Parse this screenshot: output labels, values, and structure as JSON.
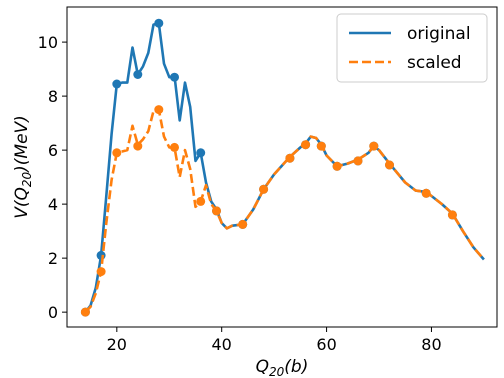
{
  "chart_data": {
    "type": "line",
    "title": "",
    "xlabel": {
      "main": "Q",
      "sub": "20",
      "rest": "(b)"
    },
    "ylabel": {
      "main": "V(Q",
      "sub": "20",
      "rest": ")(MeV)"
    },
    "xlim": [
      10.5,
      92.5
    ],
    "ylim": [
      -0.55,
      11.3
    ],
    "xticks": [
      20,
      40,
      60,
      80
    ],
    "yticks": [
      0,
      2,
      4,
      6,
      8,
      10
    ],
    "grid": false,
    "legend_position": "top-right",
    "series": [
      {
        "name": "original",
        "color": "#1f77b4",
        "style": "solid",
        "line": [
          [
            14,
            0
          ],
          [
            15,
            0.25
          ],
          [
            16,
            0.9
          ],
          [
            17,
            2.1
          ],
          [
            18,
            4.3
          ],
          [
            19,
            6.6
          ],
          [
            20,
            8.45
          ],
          [
            21,
            8.5
          ],
          [
            22,
            8.5
          ],
          [
            23,
            9.8
          ],
          [
            24,
            8.8
          ],
          [
            25,
            9.1
          ],
          [
            26,
            9.6
          ],
          [
            27,
            10.65
          ],
          [
            28,
            10.7
          ],
          [
            29,
            9.2
          ],
          [
            30,
            8.7
          ],
          [
            31,
            8.75
          ],
          [
            32,
            7.1
          ],
          [
            33,
            8.5
          ],
          [
            34,
            7.6
          ],
          [
            35,
            5.6
          ],
          [
            36,
            5.9
          ],
          [
            37,
            4.8
          ],
          [
            38,
            4.1
          ],
          [
            39,
            3.8
          ],
          [
            40,
            3.3
          ],
          [
            41,
            3.1
          ],
          [
            42,
            3.2
          ],
          [
            44,
            3.25
          ],
          [
            46,
            3.8
          ],
          [
            48,
            4.55
          ],
          [
            50,
            5.1
          ],
          [
            53,
            5.75
          ],
          [
            55,
            6.1
          ],
          [
            56,
            6.25
          ],
          [
            57,
            6.5
          ],
          [
            58,
            6.45
          ],
          [
            59,
            6.2
          ],
          [
            60,
            5.8
          ],
          [
            62,
            5.4
          ],
          [
            64,
            5.5
          ],
          [
            66,
            5.65
          ],
          [
            68,
            5.9
          ],
          [
            69,
            6.15
          ],
          [
            70,
            6.0
          ],
          [
            72,
            5.5
          ],
          [
            75,
            4.8
          ],
          [
            77,
            4.5
          ],
          [
            79,
            4.45
          ],
          [
            80,
            4.3
          ],
          [
            82,
            4.0
          ],
          [
            84,
            3.65
          ],
          [
            86,
            3.0
          ],
          [
            88,
            2.4
          ],
          [
            90,
            1.95
          ]
        ],
        "markers": [
          [
            14,
            0
          ],
          [
            17,
            2.1
          ],
          [
            20,
            8.45
          ],
          [
            24,
            8.8
          ],
          [
            28,
            10.7
          ],
          [
            31,
            8.7
          ],
          [
            36,
            5.9
          ],
          [
            39,
            3.75
          ],
          [
            44,
            3.25
          ],
          [
            48,
            4.55
          ],
          [
            53,
            5.7
          ],
          [
            56,
            6.2
          ],
          [
            59,
            6.15
          ],
          [
            62,
            5.4
          ],
          [
            66,
            5.6
          ],
          [
            69,
            6.15
          ],
          [
            72,
            5.45
          ],
          [
            79,
            4.4
          ],
          [
            84,
            3.6
          ]
        ]
      },
      {
        "name": "scaled",
        "color": "#ff7f0e",
        "style": "dashed",
        "line": [
          [
            14,
            0
          ],
          [
            15,
            0.2
          ],
          [
            16,
            0.7
          ],
          [
            17,
            1.5
          ],
          [
            18,
            3.3
          ],
          [
            19,
            4.9
          ],
          [
            20,
            5.9
          ],
          [
            21,
            5.95
          ],
          [
            22,
            6.0
          ],
          [
            23,
            6.9
          ],
          [
            24,
            6.2
          ],
          [
            25,
            6.4
          ],
          [
            26,
            6.7
          ],
          [
            27,
            7.45
          ],
          [
            28,
            7.5
          ],
          [
            29,
            6.5
          ],
          [
            30,
            6.1
          ],
          [
            31,
            6.1
          ],
          [
            32,
            5.0
          ],
          [
            33,
            6.0
          ],
          [
            34,
            5.3
          ],
          [
            35,
            3.9
          ],
          [
            36,
            4.1
          ],
          [
            37,
            4.7
          ],
          [
            38,
            4.0
          ],
          [
            39,
            3.75
          ],
          [
            40,
            3.3
          ],
          [
            41,
            3.1
          ],
          [
            42,
            3.2
          ],
          [
            44,
            3.25
          ],
          [
            46,
            3.8
          ],
          [
            48,
            4.55
          ],
          [
            50,
            5.1
          ],
          [
            53,
            5.75
          ],
          [
            55,
            6.1
          ],
          [
            56,
            6.25
          ],
          [
            57,
            6.5
          ],
          [
            58,
            6.45
          ],
          [
            59,
            6.2
          ],
          [
            60,
            5.8
          ],
          [
            62,
            5.4
          ],
          [
            64,
            5.5
          ],
          [
            66,
            5.65
          ],
          [
            68,
            5.9
          ],
          [
            69,
            6.15
          ],
          [
            70,
            6.0
          ],
          [
            72,
            5.5
          ],
          [
            75,
            4.8
          ],
          [
            77,
            4.5
          ],
          [
            79,
            4.45
          ],
          [
            80,
            4.3
          ],
          [
            82,
            4.0
          ],
          [
            84,
            3.65
          ],
          [
            86,
            3.0
          ],
          [
            88,
            2.4
          ],
          [
            90,
            1.95
          ]
        ],
        "markers": [
          [
            14,
            0
          ],
          [
            17,
            1.5
          ],
          [
            20,
            5.9
          ],
          [
            24,
            6.15
          ],
          [
            28,
            7.5
          ],
          [
            31,
            6.1
          ],
          [
            36,
            4.1
          ],
          [
            39,
            3.75
          ],
          [
            44,
            3.25
          ],
          [
            48,
            4.55
          ],
          [
            53,
            5.7
          ],
          [
            56,
            6.2
          ],
          [
            59,
            6.15
          ],
          [
            62,
            5.4
          ],
          [
            66,
            5.6
          ],
          [
            69,
            6.15
          ],
          [
            72,
            5.45
          ],
          [
            79,
            4.4
          ],
          [
            84,
            3.6
          ]
        ]
      }
    ]
  }
}
